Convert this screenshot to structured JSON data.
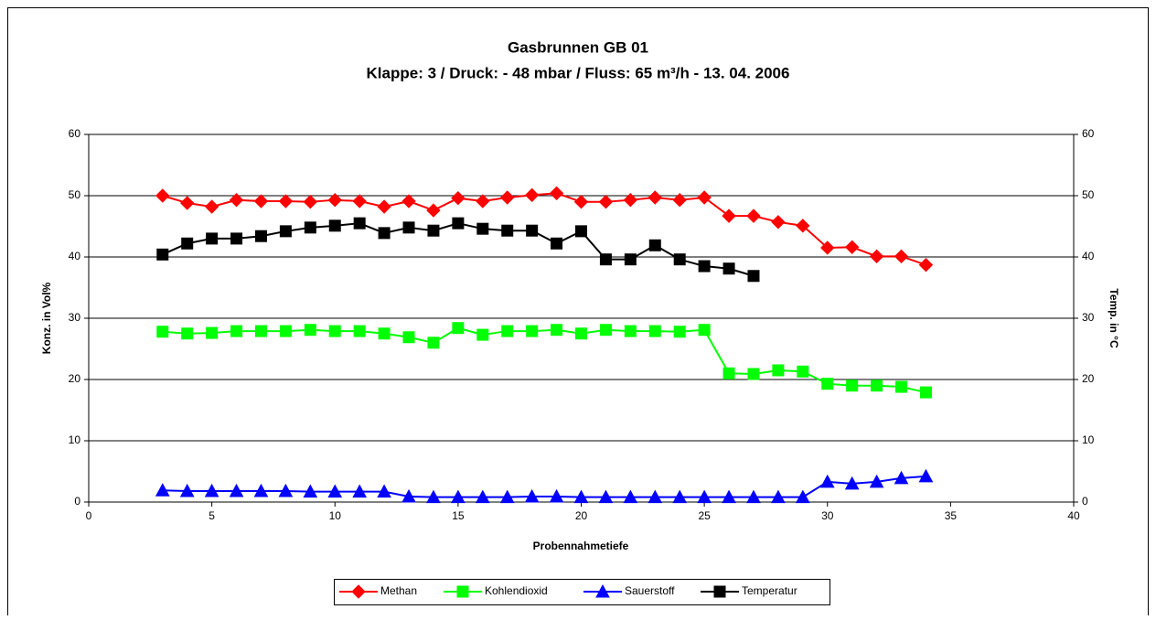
{
  "chart_data": {
    "type": "line",
    "title": "Gasbrunnen GB 01",
    "subtitle": "Klappe: 3 / Druck: - 48 mbar / Fluss: 65 m³/h - 13. 04. 2006",
    "x_label": "Probennahmetiefe",
    "y_label": "Konz. in Vol%",
    "y2_label": "Temp. in °C",
    "x": [
      3,
      4,
      5,
      6,
      7,
      8,
      9,
      10,
      11,
      12,
      13,
      14,
      15,
      16,
      17,
      18,
      19,
      20,
      21,
      22,
      23,
      24,
      25,
      26,
      27,
      28,
      29,
      30,
      31,
      32,
      33,
      34
    ],
    "series": [
      {
        "name": "Methan",
        "color": "#ff0000",
        "marker": "diamond",
        "values": [
          50.0,
          48.8,
          48.2,
          49.3,
          49.1,
          49.1,
          49.0,
          49.3,
          49.1,
          48.2,
          49.1,
          47.6,
          49.6,
          49.1,
          49.7,
          50.1,
          50.4,
          49.0,
          49.0,
          49.3,
          49.7,
          49.3,
          49.7,
          46.7,
          46.7,
          45.7,
          45.1,
          41.5,
          41.6,
          40.1,
          40.1,
          38.7
        ]
      },
      {
        "name": "Kohlendioxid",
        "color": "#00ff00",
        "marker": "square",
        "values": [
          27.8,
          27.5,
          27.6,
          27.9,
          27.9,
          27.9,
          28.1,
          27.9,
          27.9,
          27.5,
          26.9,
          26.0,
          28.4,
          27.3,
          27.9,
          27.9,
          28.1,
          27.5,
          28.1,
          27.9,
          27.9,
          27.8,
          28.1,
          21.0,
          20.9,
          21.5,
          21.3,
          19.3,
          19.0,
          19.0,
          18.8,
          17.9
        ]
      },
      {
        "name": "Sauerstoff",
        "color": "#0000ff",
        "marker": "triangle",
        "values": [
          1.9,
          1.8,
          1.8,
          1.8,
          1.8,
          1.8,
          1.7,
          1.7,
          1.7,
          1.7,
          0.9,
          0.8,
          0.8,
          0.8,
          0.8,
          0.9,
          0.9,
          0.8,
          0.8,
          0.8,
          0.8,
          0.8,
          0.8,
          0.8,
          0.8,
          0.8,
          0.8,
          3.3,
          3.0,
          3.3,
          3.9,
          4.2
        ]
      },
      {
        "name": "Temperatur",
        "color": "#000000",
        "marker": "square",
        "axis": "y2",
        "values": [
          40.4,
          42.2,
          43.0,
          43.0,
          43.4,
          44.2,
          44.8,
          45.1,
          45.5,
          43.9,
          44.8,
          44.3,
          45.5,
          44.6,
          44.3,
          44.3,
          42.2,
          44.2,
          39.6,
          39.6,
          41.9,
          39.6,
          38.5,
          38.1,
          36.9,
          null,
          null,
          null,
          null,
          null,
          null,
          null
        ]
      }
    ],
    "xlim": [
      0,
      40
    ],
    "xticks": [
      0,
      5,
      10,
      15,
      20,
      25,
      30,
      35,
      40
    ],
    "ylim": [
      0,
      60
    ],
    "yticks": [
      0,
      10,
      20,
      30,
      40,
      50,
      60
    ],
    "y2lim": [
      0,
      60
    ],
    "y2ticks": [
      0,
      10,
      20,
      30,
      40,
      50,
      60
    ],
    "grid": true,
    "legend": "bottom"
  }
}
